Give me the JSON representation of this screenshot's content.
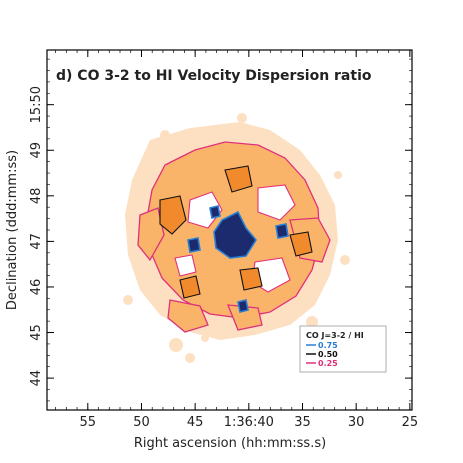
{
  "chart_data": {
    "type": "heatmap",
    "title": "d) CO 3-2 to HI Velocity Dispersion ratio",
    "xlabel": "Right ascension (hh:mm:ss.s)",
    "ylabel": "Declination (ddd:mm:ss)",
    "x_ticks": [
      {
        "label": "55",
        "value": 55
      },
      {
        "label": "50",
        "value": 50
      },
      {
        "label": "45",
        "value": 45
      },
      {
        "label": "1:36:40",
        "value": 40
      },
      {
        "label": "35",
        "value": 35
      },
      {
        "label": "30",
        "value": 30
      },
      {
        "label": "25",
        "value": 25
      }
    ],
    "y_ticks": [
      {
        "label": "44",
        "value": 44
      },
      {
        "label": "45",
        "value": 45
      },
      {
        "label": "46",
        "value": 46
      },
      {
        "label": "47",
        "value": 47
      },
      {
        "label": "48",
        "value": 48
      },
      {
        "label": "49",
        "value": 49
      },
      {
        "label": "15:50",
        "value": 50
      }
    ],
    "xlim": [
      58.8,
      24.8
    ],
    "ylim": [
      43.3,
      51.2
    ],
    "legend": {
      "title": "CO J=3-2 / HI",
      "placement": "bottom-right",
      "entries": [
        {
          "label": "0.75",
          "color": "#2a7fd4"
        },
        {
          "label": "0.50",
          "color": "#111111"
        },
        {
          "label": "0.25",
          "color": "#e0307a"
        }
      ]
    },
    "contour_levels": [
      0.25,
      0.5,
      0.75
    ],
    "colors": {
      "low": "#fde0c2",
      "mid": "#f9b46a",
      "high": "#f08a2c",
      "peak": "#1c2a6e"
    },
    "grid": false
  }
}
